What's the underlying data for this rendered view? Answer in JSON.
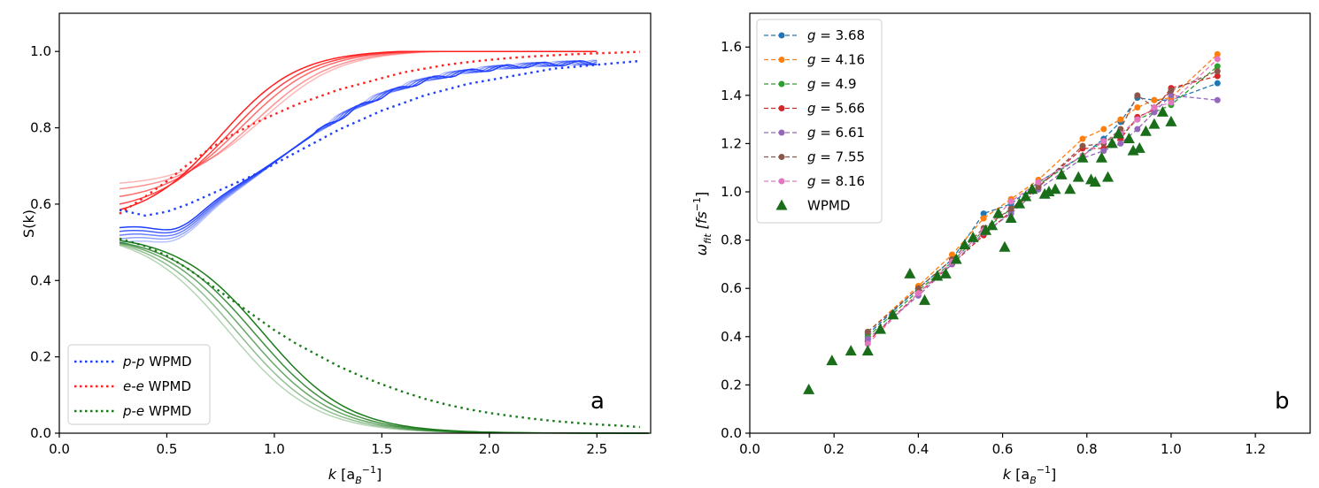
{
  "chart_data": [
    {
      "type": "line",
      "panel": "a",
      "xlabel": "k [a_B^-1]",
      "xlabel_main": "k",
      "xlabel_unit": "[a",
      "xlabel_sub": "B",
      "xlabel_sup": "−1",
      "xlabel_close": "]",
      "ylabel": "S(k)",
      "xlim": [
        0.0,
        2.75
      ],
      "ylim": [
        0.0,
        1.1
      ],
      "xticks": [
        "0.0",
        "0.5",
        "1.0",
        "1.5",
        "2.0",
        "2.5"
      ],
      "xtick_values": [
        0.0,
        0.5,
        1.0,
        1.5,
        2.0,
        2.5
      ],
      "yticks": [
        "0.0",
        "0.2",
        "0.4",
        "0.6",
        "0.8",
        "1.0"
      ],
      "ytick_values": [
        0.0,
        0.2,
        0.4,
        0.6,
        0.8,
        1.0
      ],
      "legend_position": "lower-left",
      "legend": [
        {
          "italic": "p-p",
          "label": " WPMD",
          "color": "#1f3fff"
        },
        {
          "italic": "e-e",
          "label": " WPMD",
          "color": "#ff2020"
        },
        {
          "italic": "p-e",
          "label": " WPMD",
          "color": "#1a7a1a"
        }
      ],
      "series": [
        {
          "name": "p-p WPMD",
          "style": "dotted",
          "color": "#1f3fff",
          "x": [
            0.28,
            0.4,
            0.5,
            0.6,
            0.7,
            0.8,
            0.9,
            1.0,
            1.1,
            1.2,
            1.3,
            1.4,
            1.5,
            1.6,
            1.7,
            1.8,
            1.9,
            2.0,
            2.1,
            2.2,
            2.3,
            2.4,
            2.5,
            2.6,
            2.7
          ],
          "y": [
            0.585,
            0.57,
            0.58,
            0.6,
            0.625,
            0.65,
            0.675,
            0.705,
            0.735,
            0.765,
            0.795,
            0.82,
            0.845,
            0.865,
            0.885,
            0.9,
            0.915,
            0.925,
            0.935,
            0.945,
            0.955,
            0.96,
            0.965,
            0.97,
            0.975
          ]
        },
        {
          "name": "e-e WPMD",
          "style": "dotted",
          "color": "#ff2020",
          "x": [
            0.28,
            0.4,
            0.5,
            0.6,
            0.7,
            0.8,
            0.9,
            1.0,
            1.1,
            1.2,
            1.3,
            1.4,
            1.5,
            1.6,
            1.7,
            1.8,
            1.9,
            2.0,
            2.1,
            2.2,
            2.3,
            2.4,
            2.5,
            2.6,
            2.7
          ],
          "y": [
            0.575,
            0.62,
            0.66,
            0.705,
            0.745,
            0.78,
            0.81,
            0.835,
            0.86,
            0.88,
            0.9,
            0.915,
            0.93,
            0.945,
            0.955,
            0.965,
            0.972,
            0.978,
            0.983,
            0.987,
            0.99,
            0.993,
            0.995,
            0.997,
            0.999
          ]
        },
        {
          "name": "p-e WPMD",
          "style": "dotted",
          "color": "#1a7a1a",
          "x": [
            0.28,
            0.4,
            0.5,
            0.6,
            0.7,
            0.8,
            0.9,
            1.0,
            1.1,
            1.2,
            1.3,
            1.4,
            1.5,
            1.6,
            1.7,
            1.8,
            1.9,
            2.0,
            2.1,
            2.2,
            2.3,
            2.4,
            2.5,
            2.6,
            2.7
          ],
          "y": [
            0.51,
            0.49,
            0.465,
            0.43,
            0.39,
            0.35,
            0.31,
            0.27,
            0.235,
            0.205,
            0.175,
            0.15,
            0.128,
            0.108,
            0.09,
            0.075,
            0.063,
            0.053,
            0.045,
            0.038,
            0.032,
            0.027,
            0.023,
            0.02,
            0.016
          ]
        }
      ],
      "curve_families": [
        {
          "name": "e-e MD",
          "color": "#ff2020",
          "x_end": 2.5,
          "curves": [
            {
              "s0": 0.585,
              "shift": 0.0
            },
            {
              "s0": 0.6,
              "shift": 0.05
            },
            {
              "s0": 0.62,
              "shift": 0.1
            },
            {
              "s0": 0.64,
              "shift": 0.16
            },
            {
              "s0": 0.655,
              "shift": 0.2
            }
          ]
        },
        {
          "name": "p-p MD",
          "color": "#1f3fff",
          "x_end": 2.5,
          "curves": [
            {
              "s0": 0.54,
              "shift": 0.0
            },
            {
              "s0": 0.53,
              "shift": 0.05
            },
            {
              "s0": 0.52,
              "shift": 0.1
            },
            {
              "s0": 0.51,
              "shift": 0.15
            },
            {
              "s0": 0.5,
              "shift": 0.2
            }
          ]
        },
        {
          "name": "p-e MD",
          "color": "#1a7a1a",
          "x_end": 2.75,
          "curves": [
            {
              "s0": 0.505,
              "shift": 0.0
            },
            {
              "s0": 0.5,
              "shift": 0.04
            },
            {
              "s0": 0.498,
              "shift": 0.08
            },
            {
              "s0": 0.495,
              "shift": 0.12
            },
            {
              "s0": 0.492,
              "shift": 0.16
            }
          ]
        }
      ]
    },
    {
      "type": "line",
      "panel": "b",
      "xlabel": "k [a_B^-1]",
      "xlabel_main": "k",
      "xlabel_unit": "[a",
      "xlabel_sub": "B",
      "xlabel_sup": "−1",
      "xlabel_close": "]",
      "ylabel": "ω_fit [fs^-1]",
      "ylabel_main": "ω",
      "ylabel_sub": "fit",
      "ylabel_unit": "[fs",
      "ylabel_sup": "−1",
      "ylabel_close": "]",
      "xlim": [
        0.0,
        1.33
      ],
      "ylim": [
        0.0,
        1.74
      ],
      "xticks": [
        "0.0",
        "0.2",
        "0.4",
        "0.6",
        "0.8",
        "1.0",
        "1.2"
      ],
      "xtick_values": [
        0.0,
        0.2,
        0.4,
        0.6,
        0.8,
        1.0,
        1.2
      ],
      "yticks": [
        "0.0",
        "0.2",
        "0.4",
        "0.6",
        "0.8",
        "1.0",
        "1.2",
        "1.4",
        "1.6"
      ],
      "ytick_values": [
        0.0,
        0.2,
        0.4,
        0.6,
        0.8,
        1.0,
        1.2,
        1.4,
        1.6
      ],
      "legend_position": "upper-left",
      "legend": [
        {
          "label": "g = 3.68",
          "prefix": "g",
          "value": " = 3.68",
          "color": "#1f77b4",
          "marker": "circle"
        },
        {
          "label": "g = 4.16",
          "prefix": "g",
          "value": " = 4.16",
          "color": "#ff7f0e",
          "marker": "circle"
        },
        {
          "label": "g = 4.9",
          "prefix": "g",
          "value": " = 4.9",
          "color": "#2ca02c",
          "marker": "circle"
        },
        {
          "label": "g = 5.66",
          "prefix": "g",
          "value": " = 5.66",
          "color": "#d62728",
          "marker": "circle"
        },
        {
          "label": "g = 6.61",
          "prefix": "g",
          "value": " = 6.61",
          "color": "#9467bd",
          "marker": "circle"
        },
        {
          "label": "g = 7.55",
          "prefix": "g",
          "value": " = 7.55",
          "color": "#8c564b",
          "marker": "circle"
        },
        {
          "label": "g = 8.16",
          "prefix": "g",
          "value": " = 8.16",
          "color": "#e377c2",
          "marker": "circle"
        },
        {
          "label": "WPMD",
          "prefix": "",
          "value": "WPMD",
          "color": "#1a6e1a",
          "marker": "triangle"
        }
      ],
      "x_shared": [
        0.28,
        0.4,
        0.48,
        0.555,
        0.62,
        0.685,
        0.79,
        0.84,
        0.88,
        0.92,
        0.96,
        1.0,
        1.11
      ],
      "series": [
        {
          "name": "g = 3.68",
          "color": "#1f77b4",
          "y": [
            0.41,
            0.6,
            0.72,
            0.91,
            0.95,
            1.04,
            1.15,
            1.22,
            1.29,
            1.39,
            1.38,
            1.38,
            1.45
          ]
        },
        {
          "name": "g = 4.16",
          "color": "#ff7f0e",
          "y": [
            0.42,
            0.61,
            0.74,
            0.89,
            0.97,
            1.05,
            1.22,
            1.26,
            1.3,
            1.35,
            1.38,
            1.39,
            1.57
          ]
        },
        {
          "name": "g = 4.9",
          "color": "#2ca02c",
          "y": [
            0.4,
            0.59,
            0.71,
            0.84,
            0.93,
            1.03,
            1.15,
            1.21,
            1.23,
            1.3,
            1.33,
            1.36,
            1.52
          ]
        },
        {
          "name": "g = 5.66",
          "color": "#d62728",
          "y": [
            0.38,
            0.58,
            0.7,
            0.82,
            0.92,
            1.02,
            1.18,
            1.18,
            1.22,
            1.31,
            1.34,
            1.43,
            1.48
          ]
        },
        {
          "name": "g = 6.61",
          "color": "#9467bd",
          "y": [
            0.39,
            0.57,
            0.7,
            0.83,
            0.91,
            1.01,
            1.14,
            1.17,
            1.2,
            1.26,
            1.33,
            1.4,
            1.38
          ]
        },
        {
          "name": "g = 7.55",
          "color": "#8c564b",
          "y": [
            0.42,
            0.6,
            0.72,
            0.85,
            0.93,
            1.02,
            1.19,
            1.2,
            1.26,
            1.4,
            1.35,
            1.42,
            1.5
          ]
        },
        {
          "name": "g = 8.16",
          "color": "#e377c2",
          "y": [
            0.37,
            0.58,
            0.71,
            0.84,
            0.96,
            1.04,
            1.15,
            1.21,
            1.24,
            1.3,
            1.35,
            1.37,
            1.55
          ]
        }
      ],
      "wpmd": {
        "name": "WPMD",
        "color": "#1a6e1a",
        "x": [
          0.14,
          0.195,
          0.24,
          0.28,
          0.31,
          0.34,
          0.38,
          0.415,
          0.445,
          0.465,
          0.49,
          0.51,
          0.53,
          0.56,
          0.575,
          0.59,
          0.605,
          0.62,
          0.64,
          0.655,
          0.67,
          0.7,
          0.71,
          0.725,
          0.74,
          0.76,
          0.78,
          0.79,
          0.81,
          0.82,
          0.835,
          0.85,
          0.86,
          0.875,
          0.9,
          0.91,
          0.925,
          0.94,
          0.96,
          0.98,
          1.0
        ],
        "y": [
          0.18,
          0.3,
          0.34,
          0.34,
          0.43,
          0.49,
          0.66,
          0.55,
          0.65,
          0.66,
          0.72,
          0.78,
          0.81,
          0.84,
          0.86,
          0.91,
          0.77,
          0.89,
          0.95,
          0.98,
          1.01,
          0.99,
          1.0,
          1.01,
          1.07,
          1.01,
          1.06,
          1.14,
          1.05,
          1.04,
          1.14,
          1.06,
          1.2,
          1.24,
          1.22,
          1.17,
          1.18,
          1.25,
          1.28,
          1.33,
          1.29
        ]
      }
    }
  ]
}
